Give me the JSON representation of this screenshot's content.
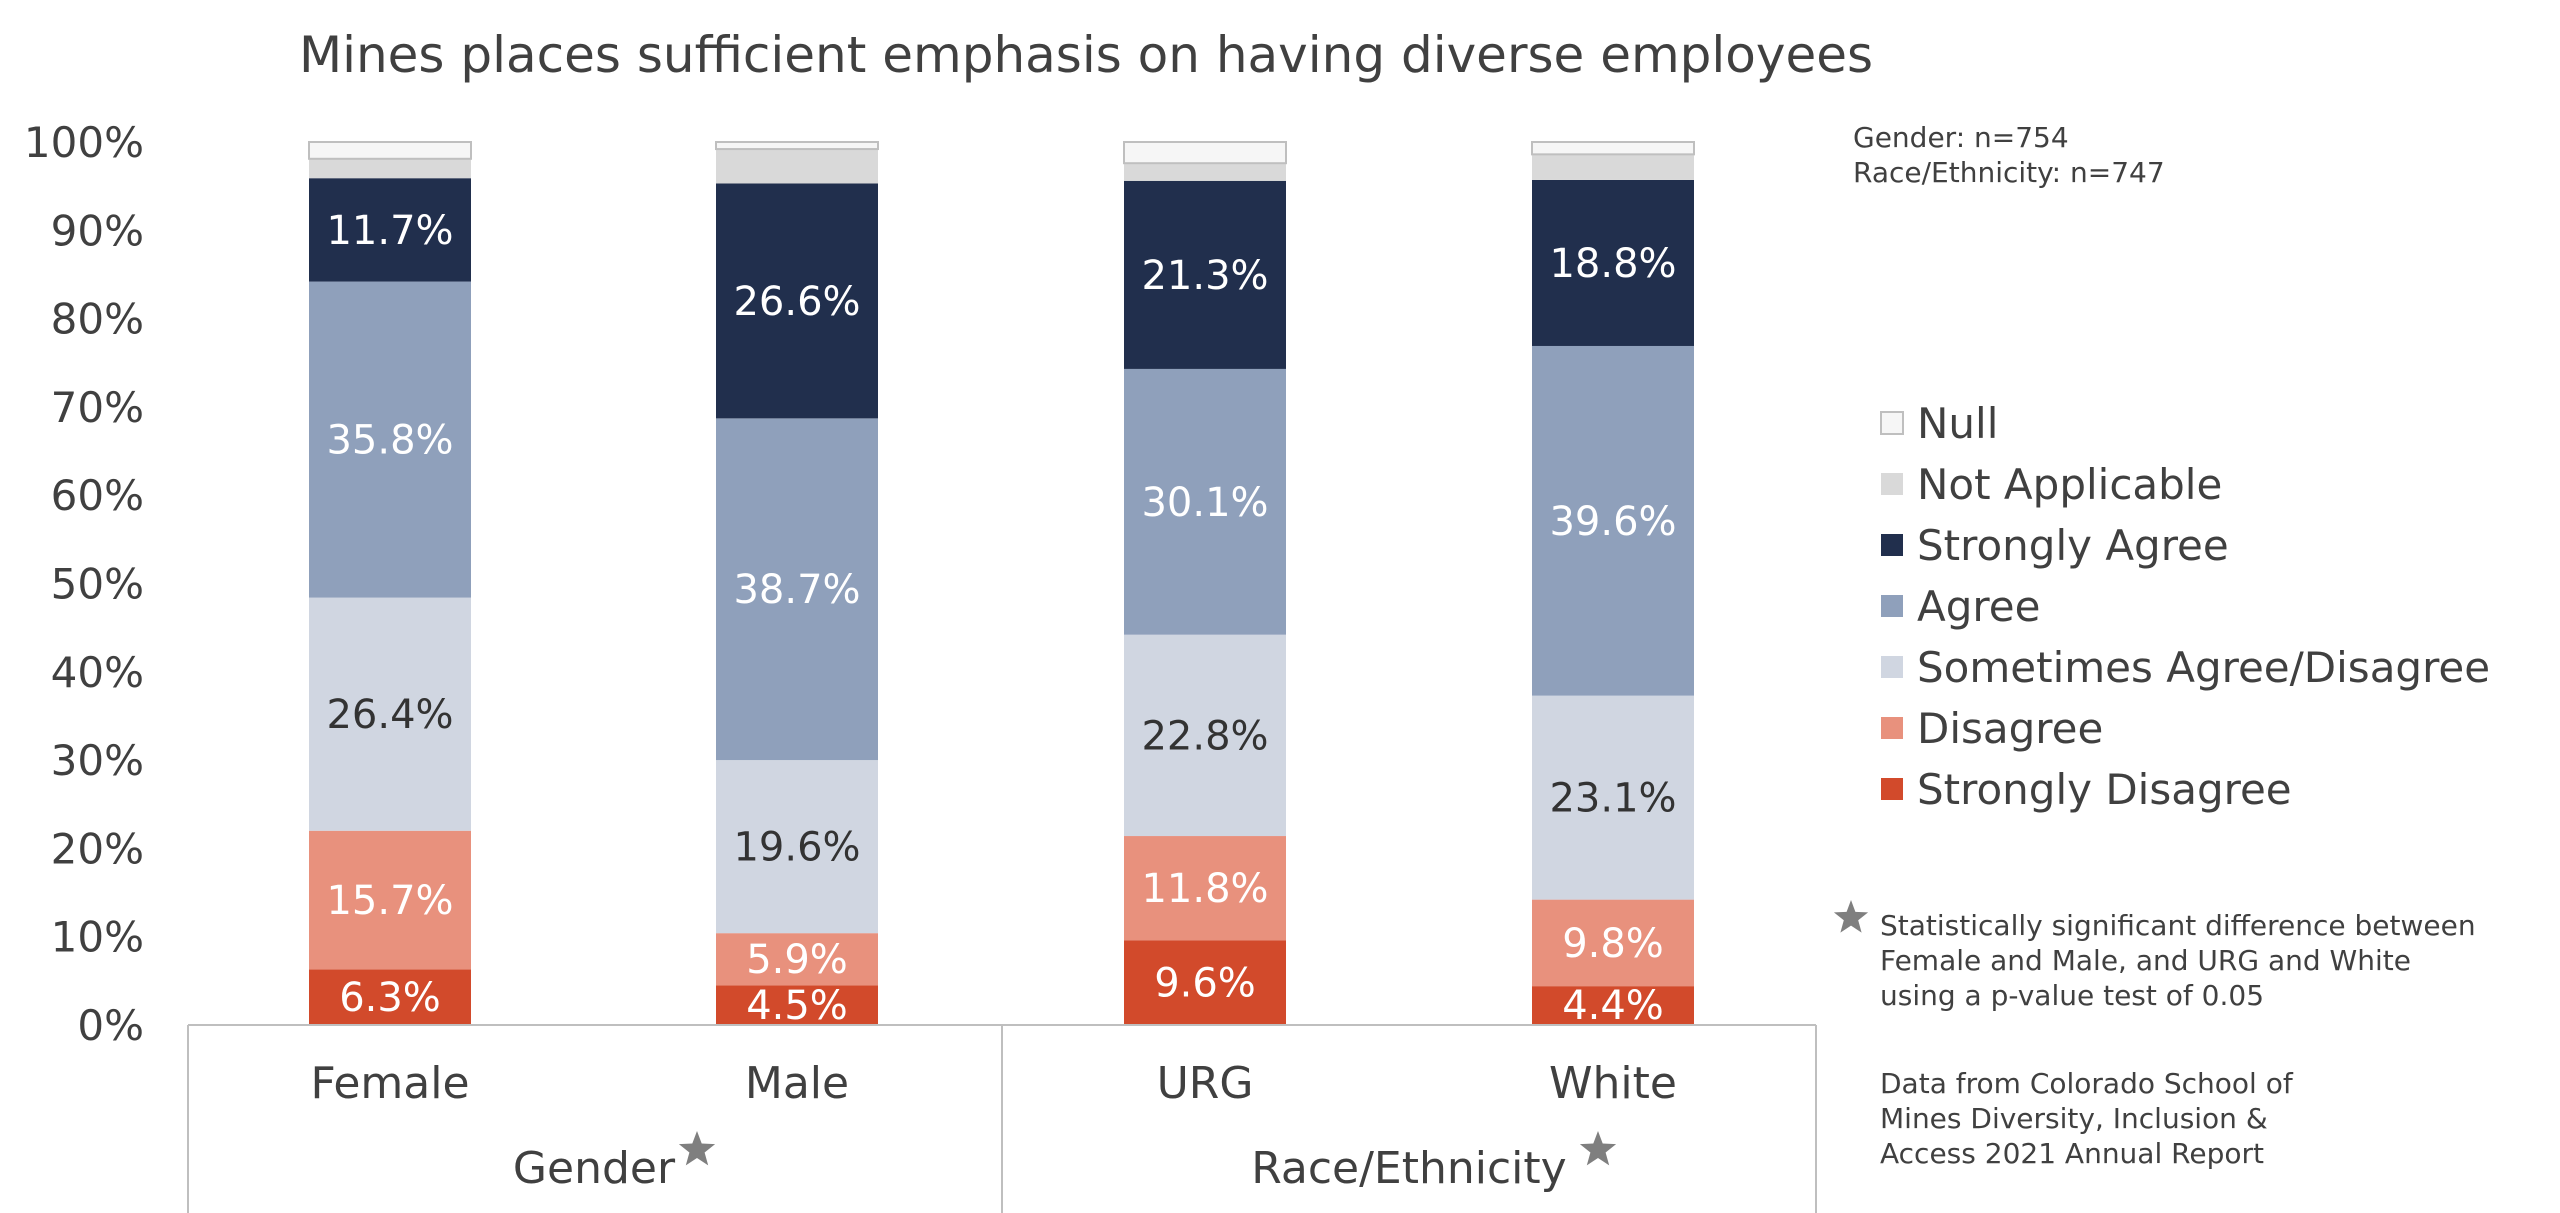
{
  "chart_data": {
    "type": "bar",
    "stacked": true,
    "title": "Mines places sufficient emphasis on having diverse employees",
    "xlabel": "",
    "ylabel": "",
    "ylim": [
      0,
      100
    ],
    "yticks": [
      "0%",
      "10%",
      "20%",
      "30%",
      "40%",
      "50%",
      "60%",
      "70%",
      "80%",
      "90%",
      "100%"
    ],
    "categories": [
      "Female",
      "Male",
      "URG",
      "White"
    ],
    "groups": [
      {
        "label": "Gender",
        "members": [
          "Female",
          "Male"
        ],
        "significant": true
      },
      {
        "label": "Race/Ethnicity",
        "members": [
          "URG",
          "White"
        ],
        "significant": true
      }
    ],
    "series": [
      {
        "name": "Strongly Disagree",
        "color": "#d24a2b",
        "label_color": "#ffffff",
        "values": [
          6.3,
          4.5,
          9.6,
          4.4
        ],
        "labels": [
          "6.3%",
          "4.5%",
          "9.6%",
          "4.4%"
        ]
      },
      {
        "name": "Disagree",
        "color": "#e8917d",
        "label_color": "#ffffff",
        "values": [
          15.7,
          5.9,
          11.8,
          9.8
        ],
        "labels": [
          "15.7%",
          "5.9%",
          "11.8%",
          "9.8%"
        ]
      },
      {
        "name": "Sometimes Agree/Disagree",
        "color": "#d0d6e1",
        "label_color": "#333333",
        "values": [
          26.4,
          19.6,
          22.8,
          23.1
        ],
        "labels": [
          "26.4%",
          "19.6%",
          "22.8%",
          "23.1%"
        ]
      },
      {
        "name": "Agree",
        "color": "#8fa0bb",
        "label_color": "#ffffff",
        "values": [
          35.8,
          38.7,
          30.1,
          39.6
        ],
        "labels": [
          "35.8%",
          "38.7%",
          "30.1%",
          "39.6%"
        ]
      },
      {
        "name": "Strongly Agree",
        "color": "#212f4d",
        "label_color": "#ffffff",
        "values": [
          11.7,
          26.6,
          21.3,
          18.8
        ],
        "labels": [
          "11.7%",
          "26.6%",
          "21.3%",
          "18.8%"
        ]
      },
      {
        "name": "Not Applicable",
        "color": "#d9d9d9",
        "label_color": "",
        "values": [
          2.2,
          3.9,
          2.0,
          2.9
        ],
        "labels": [
          "",
          "",
          "",
          ""
        ]
      },
      {
        "name": "Null",
        "color": "#f6f6f6",
        "label_color": "",
        "values": [
          1.9,
          0.8,
          2.4,
          1.4
        ],
        "labels": [
          "",
          "",
          "",
          ""
        ]
      }
    ],
    "legend": {
      "placement": "right",
      "entries": [
        "Null",
        "Not Applicable",
        "Strongly Agree",
        "Agree",
        "Sometimes Agree/Disagree",
        "Disagree",
        "Strongly Disagree"
      ]
    },
    "grid": false
  },
  "notes": {
    "sample_gender": "Gender: n=754",
    "sample_race": "Race/Ethnicity: n=747",
    "significance_lines": [
      "Statistically significant difference between",
      "Female and Male, and URG and White",
      "using a p-value test of 0.05"
    ],
    "source_lines": [
      "Data from Colorado School of",
      "Mines Diversity, Inclusion &",
      "Access 2021 Annual Report"
    ]
  },
  "colors": {
    "text": "#404040",
    "star": "#7f7f7f",
    "axis_box": "#bfbfbf"
  }
}
